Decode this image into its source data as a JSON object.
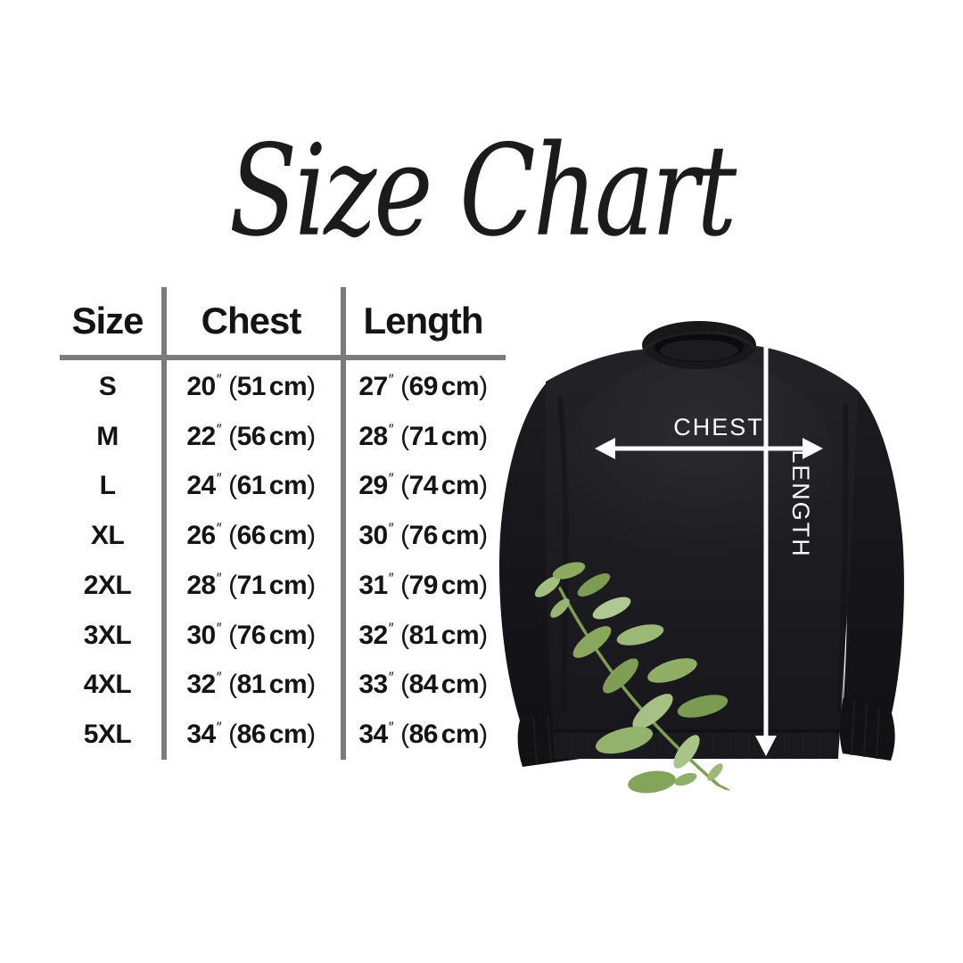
{
  "title": "Size Chart",
  "table": {
    "headers": [
      "Size",
      "Chest",
      "Length"
    ],
    "inch_mark": "″",
    "rows": [
      {
        "size": "S",
        "chest_in": "20",
        "chest_cm": "51 cm",
        "length_in": "27",
        "length_cm": "69 cm"
      },
      {
        "size": "M",
        "chest_in": "22",
        "chest_cm": "56 cm",
        "length_in": "28",
        "length_cm": "71 cm"
      },
      {
        "size": "L",
        "chest_in": "24",
        "chest_cm": "61 cm",
        "length_in": "29",
        "length_cm": "74 cm"
      },
      {
        "size": "XL",
        "chest_in": "26",
        "chest_cm": "66 cm",
        "length_in": "30",
        "length_cm": "76 cm"
      },
      {
        "size": "2XL",
        "chest_in": "28",
        "chest_cm": "71 cm",
        "length_in": "31",
        "length_cm": "79 cm"
      },
      {
        "size": "3XL",
        "chest_in": "30",
        "chest_cm": "76 cm",
        "length_in": "32",
        "length_cm": "81 cm"
      },
      {
        "size": "4XL",
        "chest_in": "32",
        "chest_cm": "81 cm",
        "length_in": "33",
        "length_cm": "84 cm"
      },
      {
        "size": "5XL",
        "chest_in": "34",
        "chest_cm": "86 cm",
        "length_in": "34",
        "length_cm": "86 cm"
      }
    ]
  },
  "diagram": {
    "chest_label": "CHEST",
    "length_label": "LENGTH"
  },
  "colors": {
    "background": "#ffffff",
    "table_line_gray": "#7b7b7b",
    "text_black": "#141414",
    "garment_black": "#1d1d21",
    "arrow_white": "#ffffff",
    "leaf_green": "#8fb068"
  },
  "chart_data": {
    "type": "table",
    "title": "Size Chart",
    "columns": [
      "Size",
      "Chest",
      "Length"
    ],
    "rows": [
      [
        "S",
        "20″ (51 cm)",
        "27″ (69 cm)"
      ],
      [
        "M",
        "22″ (56 cm)",
        "28″ (71 cm)"
      ],
      [
        "L",
        "24″ (61 cm)",
        "29″ (74 cm)"
      ],
      [
        "XL",
        "26″ (66 cm)",
        "30″ (76 cm)"
      ],
      [
        "2XL",
        "28″ (71 cm)",
        "31″ (79 cm)"
      ],
      [
        "3XL",
        "30″ (76 cm)",
        "32″ (81 cm)"
      ],
      [
        "4XL",
        "32″ (81 cm)",
        "33″ (84 cm)"
      ],
      [
        "5XL",
        "34″ (86 cm)",
        "34″ (86 cm)"
      ]
    ]
  }
}
